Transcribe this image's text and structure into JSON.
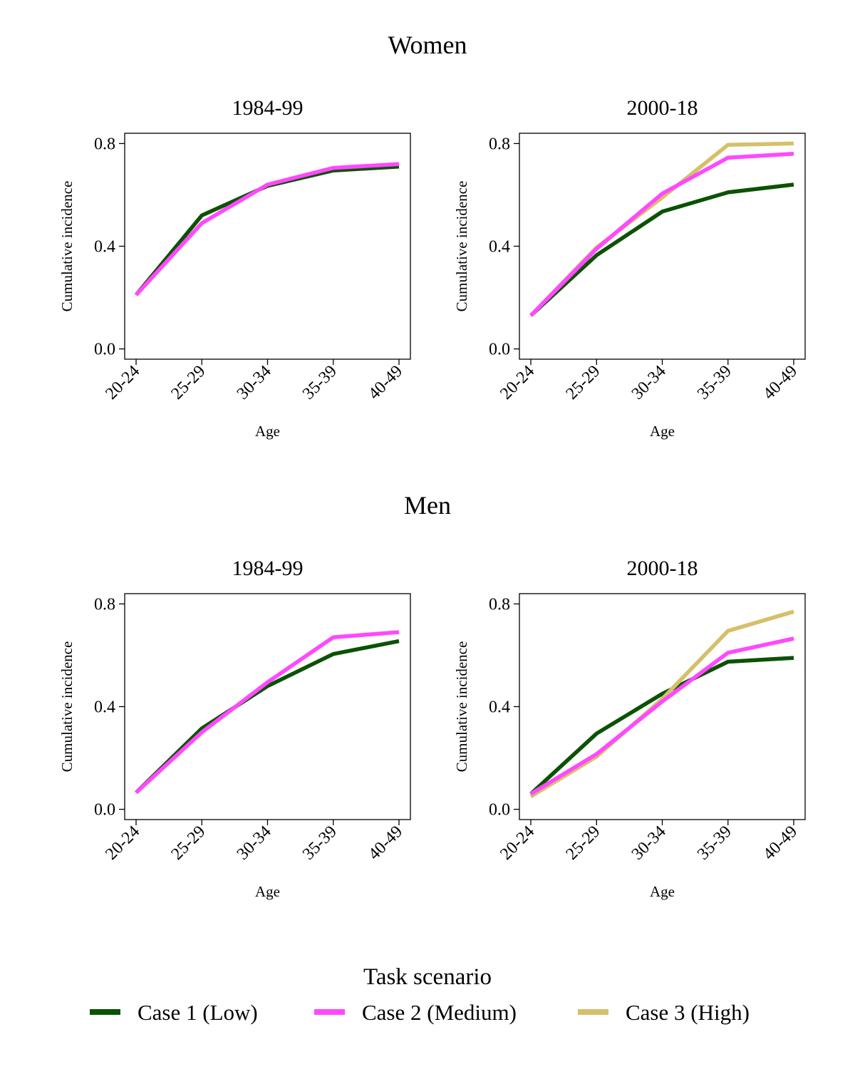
{
  "colors": {
    "case1": "#0B5204",
    "case2": "#FF48FF",
    "case3": "#D5C06A"
  },
  "groups": [
    {
      "key": "women",
      "title": "Women"
    },
    {
      "key": "men",
      "title": "Men"
    }
  ],
  "legend": {
    "title": "Task scenario",
    "items": [
      {
        "label": "Case 1 (Low)",
        "color_key": "case1"
      },
      {
        "label": "Case 2 (Medium)",
        "color_key": "case2"
      },
      {
        "label": "Case 3 (High)",
        "color_key": "case3"
      }
    ]
  },
  "chart_data": [
    {
      "type": "line",
      "group": "Women",
      "title": "1984-99",
      "xlabel": "Age",
      "ylabel": "Cumulative incidence",
      "categories": [
        "20-24",
        "25-29",
        "30-34",
        "35-39",
        "40-49"
      ],
      "ylim": [
        -0.04,
        0.84
      ],
      "yticks": [
        0.0,
        0.4,
        0.8
      ],
      "ytick_labels": [
        "0.0",
        "0.4",
        "0.8"
      ],
      "grid": false,
      "series": [
        {
          "name": "Case 1 (Low)",
          "color_key": "case1",
          "values": [
            0.21,
            0.52,
            0.635,
            0.695,
            0.71
          ]
        },
        {
          "name": "Case 2 (Medium)",
          "color_key": "case2",
          "values": [
            0.21,
            0.49,
            0.64,
            0.705,
            0.72
          ]
        }
      ]
    },
    {
      "type": "line",
      "group": "Women",
      "title": "2000-18",
      "xlabel": "Age",
      "ylabel": "Cumulative incidence",
      "categories": [
        "20-24",
        "25-29",
        "30-34",
        "35-39",
        "40-49"
      ],
      "ylim": [
        -0.04,
        0.84
      ],
      "yticks": [
        0.0,
        0.4,
        0.8
      ],
      "ytick_labels": [
        "0.0",
        "0.4",
        "0.8"
      ],
      "grid": false,
      "series": [
        {
          "name": "Case 1 (Low)",
          "color_key": "case1",
          "values": [
            0.13,
            0.365,
            0.535,
            0.61,
            0.64
          ]
        },
        {
          "name": "Case 3 (High)",
          "color_key": "case3",
          "values": [
            0.13,
            0.395,
            0.59,
            0.795,
            0.8
          ]
        },
        {
          "name": "Case 2 (Medium)",
          "color_key": "case2",
          "values": [
            0.13,
            0.39,
            0.605,
            0.745,
            0.76
          ]
        }
      ]
    },
    {
      "type": "line",
      "group": "Men",
      "title": "1984-99",
      "xlabel": "Age",
      "ylabel": "Cumulative incidence",
      "categories": [
        "20-24",
        "25-29",
        "30-34",
        "35-39",
        "40-49"
      ],
      "ylim": [
        -0.04,
        0.84
      ],
      "yticks": [
        0.0,
        0.4,
        0.8
      ],
      "ytick_labels": [
        "0.0",
        "0.4",
        "0.8"
      ],
      "grid": false,
      "series": [
        {
          "name": "Case 1 (Low)",
          "color_key": "case1",
          "values": [
            0.065,
            0.315,
            0.48,
            0.605,
            0.655
          ]
        },
        {
          "name": "Case 2 (Medium)",
          "color_key": "case2",
          "values": [
            0.065,
            0.3,
            0.495,
            0.67,
            0.69
          ]
        }
      ]
    },
    {
      "type": "line",
      "group": "Men",
      "title": "2000-18",
      "xlabel": "Age",
      "ylabel": "Cumulative incidence",
      "categories": [
        "20-24",
        "25-29",
        "30-34",
        "35-39",
        "40-49"
      ],
      "ylim": [
        -0.04,
        0.84
      ],
      "yticks": [
        0.0,
        0.4,
        0.8
      ],
      "ytick_labels": [
        "0.0",
        "0.4",
        "0.8"
      ],
      "grid": false,
      "series": [
        {
          "name": "Case 1 (Low)",
          "color_key": "case1",
          "values": [
            0.06,
            0.295,
            0.45,
            0.575,
            0.59
          ]
        },
        {
          "name": "Case 3 (High)",
          "color_key": "case3",
          "values": [
            0.05,
            0.205,
            0.43,
            0.695,
            0.77
          ]
        },
        {
          "name": "Case 2 (Medium)",
          "color_key": "case2",
          "values": [
            0.06,
            0.215,
            0.42,
            0.61,
            0.665
          ]
        }
      ]
    }
  ]
}
